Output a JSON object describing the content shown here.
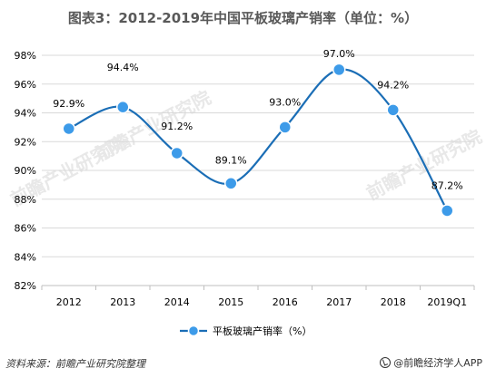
{
  "title": "图表3：2012-2019年中国平板玻璃产销率（单位：%）",
  "source": "资料来源：前瞻产业研究院整理",
  "brand": "@前瞻经济学人APP",
  "watermark": "前瞻产业研究院",
  "colors": {
    "line": "#1b6eb6",
    "marker_fill": "#3d9be9",
    "marker_stroke": "#ffffff",
    "grid": "#d9d9d9",
    "axis_text": "#000000",
    "watermark": "#e8e8e8"
  },
  "chart_data": {
    "type": "line",
    "smooth": true,
    "categories": [
      "2012",
      "2013",
      "2014",
      "2015",
      "2016",
      "2017",
      "2018",
      "2019Q1"
    ],
    "series": [
      {
        "name": "平板玻璃产销率（%）",
        "values": [
          92.9,
          94.4,
          91.2,
          89.1,
          93.0,
          97.0,
          94.2,
          87.2
        ],
        "labels": [
          "92.9%",
          "94.4%",
          "91.2%",
          "89.1%",
          "93.0%",
          "97.0%",
          "94.2%",
          "87.2%"
        ]
      }
    ],
    "ylim": [
      82,
      98
    ],
    "yticks": [
      82,
      84,
      86,
      88,
      90,
      92,
      94,
      96,
      98
    ],
    "ytick_labels": [
      "82%",
      "84%",
      "86%",
      "88%",
      "90%",
      "92%",
      "94%",
      "96%",
      "98%"
    ],
    "grid": true,
    "legend_position": "bottom-center",
    "xlabel": "",
    "ylabel": ""
  }
}
